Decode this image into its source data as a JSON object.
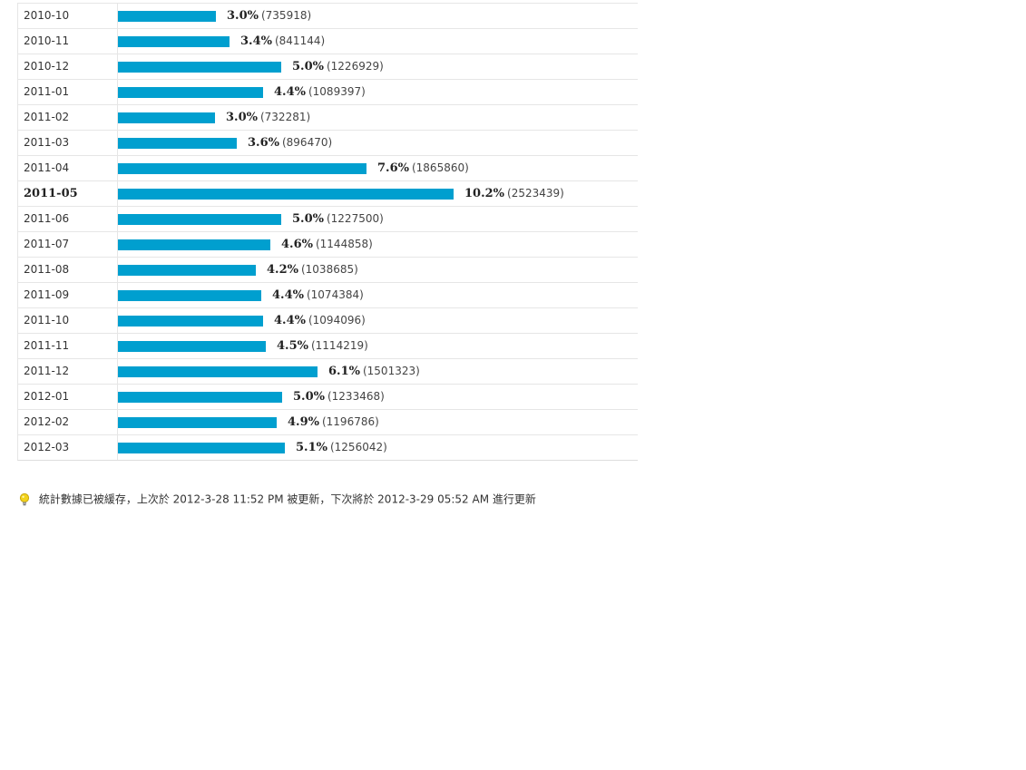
{
  "chart_data": {
    "type": "bar",
    "orientation": "horizontal",
    "categories": [
      "2010-10",
      "2010-11",
      "2010-12",
      "2011-01",
      "2011-02",
      "2011-03",
      "2011-04",
      "2011-05",
      "2011-06",
      "2011-07",
      "2011-08",
      "2011-09",
      "2011-10",
      "2011-11",
      "2011-12",
      "2012-01",
      "2012-02",
      "2012-03"
    ],
    "values": [
      735918,
      841144,
      1226929,
      1089397,
      732281,
      896470,
      1865860,
      2523439,
      1227500,
      1144858,
      1038685,
      1074384,
      1094096,
      1114219,
      1501323,
      1233468,
      1196786,
      1256042
    ],
    "percent_labels": [
      "3.0%",
      "3.4%",
      "5.0%",
      "4.4%",
      "3.0%",
      "3.6%",
      "7.6%",
      "10.2%",
      "5.0%",
      "4.6%",
      "4.2%",
      "4.4%",
      "4.4%",
      "4.5%",
      "6.1%",
      "5.0%",
      "4.9%",
      "5.1%"
    ],
    "count_labels": [
      "(735918)",
      "(841144)",
      "(1226929)",
      "(1089397)",
      "(732281)",
      "(896470)",
      "(1865860)",
      "(2523439)",
      "(1227500)",
      "(1144858)",
      "(1038685)",
      "(1074384)",
      "(1094096)",
      "(1114219)",
      "(1501323)",
      "(1233468)",
      "(1196786)",
      "(1256042)"
    ],
    "highlight_category": "2011-05",
    "bar_color": "#009fcf",
    "grid": false,
    "legend": "none"
  },
  "footer": {
    "icon": "lightbulb-icon",
    "note": "統計數據已被緩存，上次於 2012-3-28 11:52 PM 被更新，下次將於 2012-3-29 05:52 AM 進行更新"
  }
}
